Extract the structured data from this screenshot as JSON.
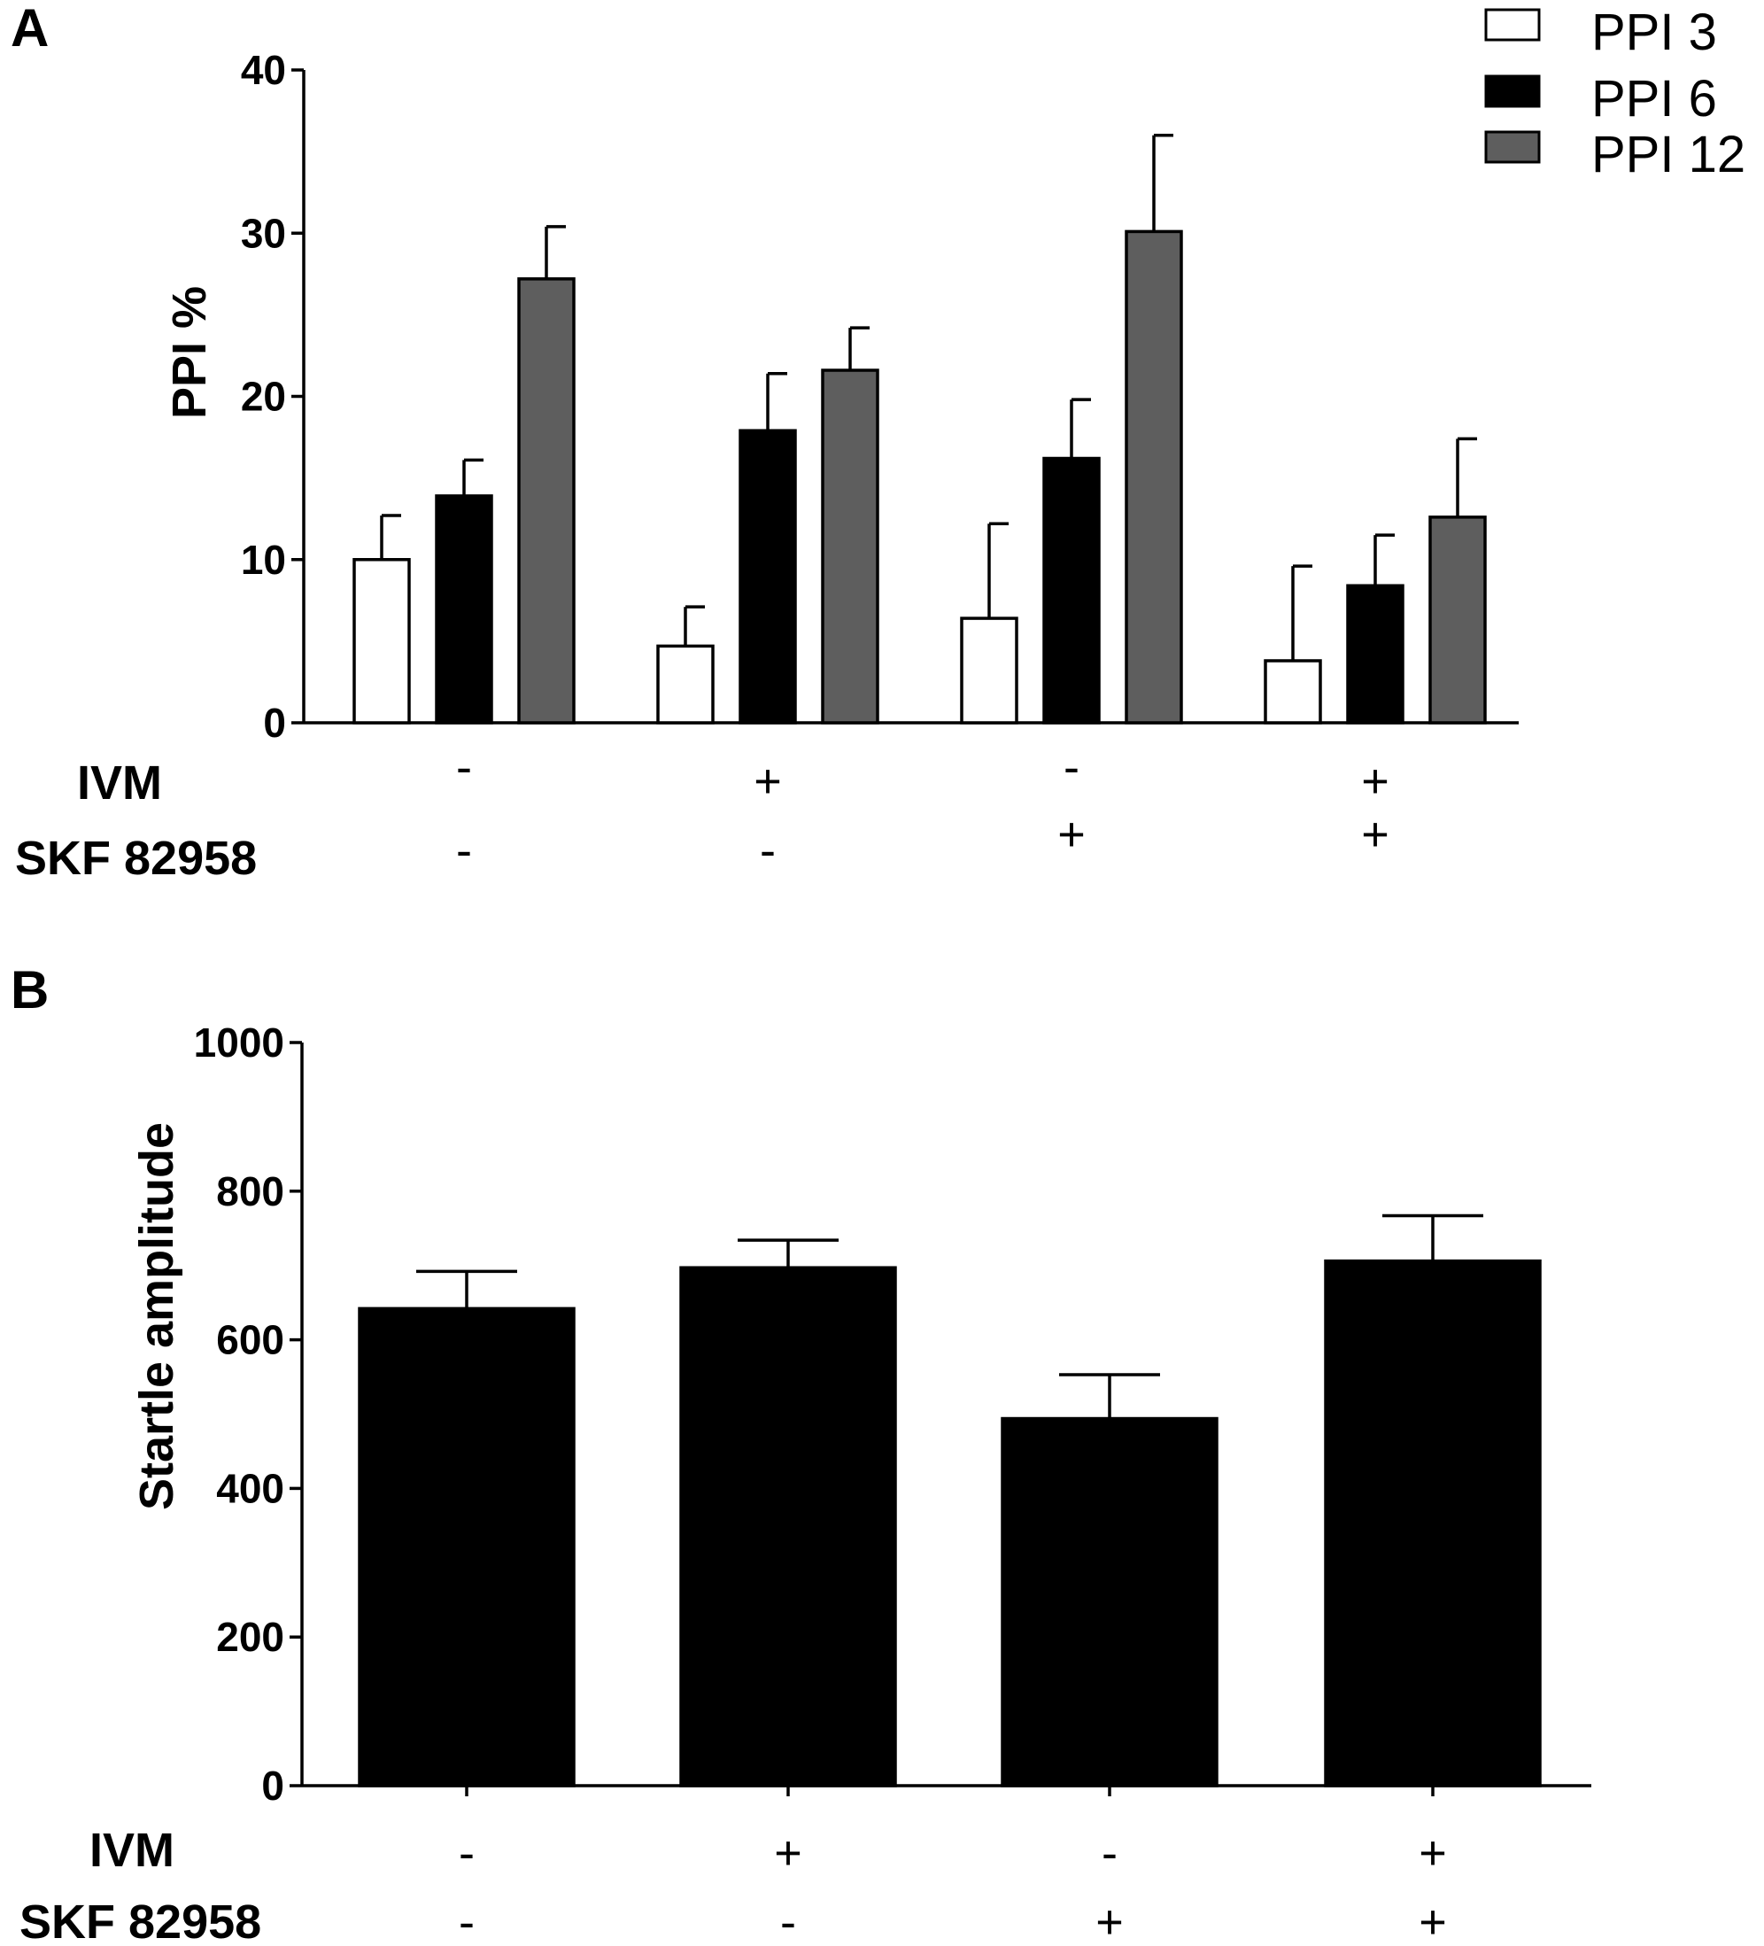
{
  "chart_data": [
    {
      "panel": "A",
      "type": "bar",
      "ylabel": "PPI %",
      "ylim": [
        0,
        40
      ],
      "yticks": [
        "0",
        "10",
        "20",
        "30",
        "40"
      ],
      "row_labels": [
        "IVM",
        "SKF 82958"
      ],
      "categories": [
        {
          "IVM": "-",
          "SKF 82958": "-"
        },
        {
          "IVM": "+",
          "SKF 82958": "-"
        },
        {
          "IVM": "-",
          "SKF 82958": "+"
        },
        {
          "IVM": "+",
          "SKF 82958": "+"
        }
      ],
      "legend_position": "top-right",
      "series": [
        {
          "name": "PPI 3",
          "color": "#ffffff",
          "values": [
            10,
            4.7,
            6.4,
            3.8
          ],
          "errors": [
            2.7,
            2.4,
            5.8,
            5.8
          ]
        },
        {
          "name": "PPI 6",
          "color": "#000000",
          "values": [
            13.9,
            17.9,
            16.2,
            8.4
          ],
          "errors": [
            2.2,
            3.5,
            3.6,
            3.1
          ]
        },
        {
          "name": "PPI 12",
          "color": "#5e5e5e",
          "values": [
            27.2,
            21.6,
            30.1,
            12.6
          ],
          "errors": [
            3.2,
            2.6,
            5.9,
            4.8
          ]
        }
      ]
    },
    {
      "panel": "B",
      "type": "bar",
      "ylabel": "Startle amplitude",
      "ylim": [
        0,
        1000
      ],
      "yticks": [
        "0",
        "200",
        "400",
        "600",
        "800",
        "1000"
      ],
      "row_labels": [
        "IVM",
        "SKF 82958"
      ],
      "categories": [
        {
          "IVM": "-",
          "SKF 82958": "-"
        },
        {
          "IVM": "+",
          "SKF 82958": "-"
        },
        {
          "IVM": "-",
          "SKF 82958": "+"
        },
        {
          "IVM": "+",
          "SKF 82958": "+"
        }
      ],
      "series": [
        {
          "color": "#000000",
          "values": [
            642,
            697,
            494,
            706
          ],
          "errors": [
            50,
            37,
            59,
            61
          ]
        }
      ]
    }
  ]
}
